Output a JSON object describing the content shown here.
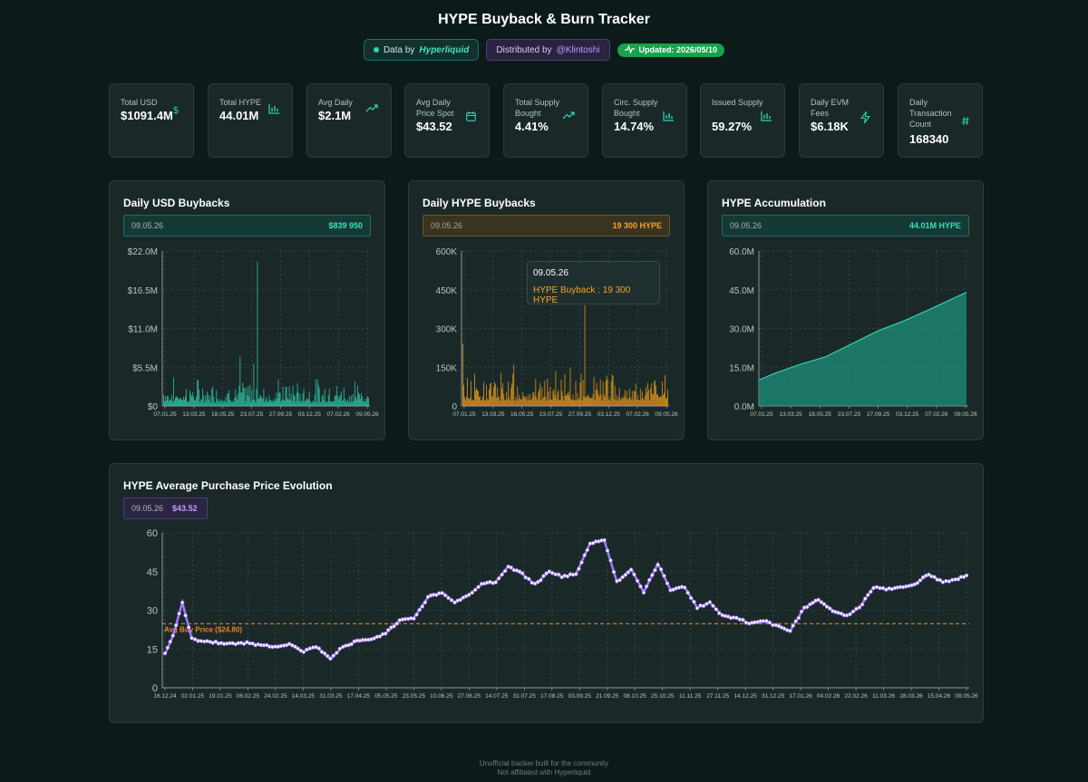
{
  "header": {
    "title": "HYPE Buyback & Burn Tracker",
    "data_prefix": "Data by",
    "data_source": "Hyperliquid",
    "dist_prefix": "Distributed by",
    "dist_handle": "@Klintoshi",
    "updated": "Updated: 2026/05/10"
  },
  "colors": {
    "accent_teal": "#2ed3b0",
    "accent_orange": "#f5a623",
    "accent_purple": "#a27bff",
    "update_green": "#16a34a",
    "avg_line": "#f07f2b"
  },
  "stats": [
    {
      "label": "Total USD",
      "value": "$1091.4M",
      "icon": "dollar-icon"
    },
    {
      "label": "Total HYPE",
      "value": "44.01M",
      "icon": "bar-chart-icon"
    },
    {
      "label": "Avg Daily",
      "value": "$2.1M",
      "icon": "trending-up-icon"
    },
    {
      "label": "Avg Daily Price Spot",
      "value": "$43.52",
      "icon": "calendar-icon"
    },
    {
      "label": "Total Supply Bought",
      "value": "4.41%",
      "icon": "trending-up-icon"
    },
    {
      "label": "Circ. Supply Bought",
      "value": "14.74%",
      "icon": "bar-chart-icon"
    },
    {
      "label": "Issued Supply",
      "value": "59.27%",
      "icon": "bar-chart-icon"
    },
    {
      "label": "Daily EVM Fees",
      "value": "$6.18K",
      "icon": "lightning-icon"
    },
    {
      "label": "Daily Transaction Count",
      "value": "168340",
      "icon": "hash-icon"
    }
  ],
  "panels": {
    "usd": {
      "title": "Daily USD Buybacks",
      "date": "09.05.26",
      "value": "$839 950"
    },
    "hype": {
      "title": "Daily HYPE Buybacks",
      "date": "09.05.26",
      "value": "19 300 HYPE"
    },
    "accum": {
      "title": "HYPE Accumulation",
      "date": "09.05.26",
      "value": "44.01M HYPE"
    },
    "price": {
      "title": "HYPE Average Purchase Price Evolution",
      "date": "09.05.26",
      "value": "$43.52"
    }
  },
  "tooltip": {
    "date": "09.05.26",
    "text": "HYPE Buyback : 19 300 HYPE"
  },
  "footer": {
    "line1": "Unofficial tracker built for the community",
    "line2": "Not affiliated with Hyperliquid"
  },
  "chart_data": [
    {
      "type": "bar",
      "title": "Daily USD Buybacks",
      "ylim": [
        0,
        22000000
      ],
      "yticks": [
        "$0",
        "$5.5M",
        "$11.0M",
        "$16.5M",
        "$22.0M"
      ],
      "ytick_values": [
        0,
        5500000,
        11000000,
        16500000,
        22000000
      ],
      "xticks": [
        "07.01.25",
        "13.03.25",
        "18.05.25",
        "23.07.25",
        "27.09.25",
        "03.12.25",
        "07.02.26",
        "09.05.26"
      ],
      "x_range": [
        "01.12.24",
        "09.05.26"
      ],
      "values_note": "daily series, ~525 values",
      "series_peaks": [
        {
          "date": "30.07.25",
          "value": 20500000
        },
        {
          "date": "15.06.25",
          "value": 7000000
        },
        {
          "date": "20.07.25",
          "value": 6000000
        }
      ],
      "typical_range": [
        500000,
        3500000
      ],
      "grid": true
    },
    {
      "type": "bar",
      "title": "Daily HYPE Buybacks",
      "ylim": [
        0,
        600000
      ],
      "yticks": [
        "0",
        "150K",
        "300K",
        "450K",
        "600K"
      ],
      "ytick_values": [
        0,
        150000,
        300000,
        450000,
        600000
      ],
      "xticks": [
        "07.01.25",
        "13.03.25",
        "18.05.25",
        "23.07.25",
        "27.09.25",
        "03.12.25",
        "07.02.26",
        "09.05.26"
      ],
      "series_peaks": [
        {
          "date": "01.12.24",
          "value": 240000
        },
        {
          "date": "10.10.25",
          "value": 390000
        },
        {
          "date": "10.04.25",
          "value": 160000
        }
      ],
      "typical_range": [
        20000,
        120000
      ],
      "grid": true
    },
    {
      "type": "area",
      "title": "HYPE Accumulation",
      "ylim": [
        0,
        60000000
      ],
      "yticks": [
        "0.0M",
        "15.0M",
        "30.0M",
        "45.0M",
        "60.0M"
      ],
      "ytick_values": [
        0,
        15000000,
        30000000,
        45000000,
        60000000
      ],
      "xticks": [
        "07.01.25",
        "13.03.25",
        "18.05.25",
        "23.07.25",
        "27.09.25",
        "03.12.25",
        "07.02.26",
        "09.05.26"
      ],
      "x": [
        "01.12.24",
        "07.01.25",
        "13.03.25",
        "18.05.25",
        "23.07.25",
        "27.09.25",
        "03.12.25",
        "07.02.26",
        "09.05.26"
      ],
      "y": [
        10000000,
        12500000,
        16000000,
        19000000,
        24000000,
        29000000,
        33000000,
        37500000,
        44010000
      ],
      "grid": true
    },
    {
      "type": "line",
      "title": "HYPE Average Purchase Price Evolution",
      "ylim": [
        0,
        60
      ],
      "yticks": [
        "0",
        "15",
        "30",
        "45",
        "60"
      ],
      "ytick_values": [
        0,
        15,
        30,
        45,
        60
      ],
      "xticks": [
        "16.12.24",
        "02.01.25",
        "19.01.25",
        "06.02.25",
        "24.02.25",
        "14.03.25",
        "31.03.25",
        "17.04.25",
        "05.05.25",
        "23.05.25",
        "10.06.25",
        "27.06.25",
        "14.07.25",
        "31.07.25",
        "17.08.25",
        "03.09.25",
        "21.09.25",
        "08.10.25",
        "25.10.25",
        "11.11.25",
        "27.11.25",
        "14.12.25",
        "31.12.25",
        "17.01.26",
        "04.02.26",
        "22.02.26",
        "11.03.26",
        "28.03.26",
        "15.04.26",
        "09.05.26"
      ],
      "x": [
        "16.12.24",
        "21.12.24",
        "27.12.24",
        "02.01.25",
        "10.01.25",
        "19.01.25",
        "28.01.25",
        "06.02.25",
        "15.02.25",
        "24.02.25",
        "05.03.25",
        "14.03.25",
        "22.03.25",
        "31.03.25",
        "08.04.25",
        "17.04.25",
        "26.04.25",
        "05.05.25",
        "14.05.25",
        "23.05.25",
        "01.06.25",
        "10.06.25",
        "18.06.25",
        "27.06.25",
        "05.07.25",
        "14.07.25",
        "22.07.25",
        "31.07.25",
        "08.08.25",
        "17.08.25",
        "25.08.25",
        "03.09.25",
        "12.09.25",
        "21.09.25",
        "29.09.25",
        "08.10.25",
        "16.10.25",
        "25.10.25",
        "02.11.25",
        "11.11.25",
        "19.11.25",
        "27.11.25",
        "05.12.25",
        "14.12.25",
        "22.12.25",
        "31.12.25",
        "08.01.26",
        "17.01.26",
        "26.01.26",
        "04.02.26",
        "13.02.26",
        "22.02.26",
        "02.03.26",
        "11.03.26",
        "19.03.26",
        "28.03.26",
        "06.04.26",
        "15.04.26",
        "24.04.26",
        "02.05.26",
        "09.05.26"
      ],
      "y": [
        13,
        20,
        33,
        19,
        18,
        17.5,
        17,
        17.3,
        16.5,
        16,
        17,
        14,
        16,
        11,
        16,
        18,
        18.5,
        21,
        26,
        27,
        35,
        37,
        33,
        36,
        40,
        41,
        47,
        44,
        40,
        45,
        43,
        44,
        56,
        57,
        41,
        46,
        37,
        48,
        38,
        39,
        31,
        33,
        28,
        27,
        25,
        26,
        24,
        22,
        31,
        34,
        30,
        28,
        31,
        39,
        38,
        39,
        40,
        44,
        41,
        42,
        43.5
      ],
      "avg_buy_price": 24.8,
      "avg_label": "Avg Buy Price ($24.80)",
      "grid": true
    }
  ]
}
